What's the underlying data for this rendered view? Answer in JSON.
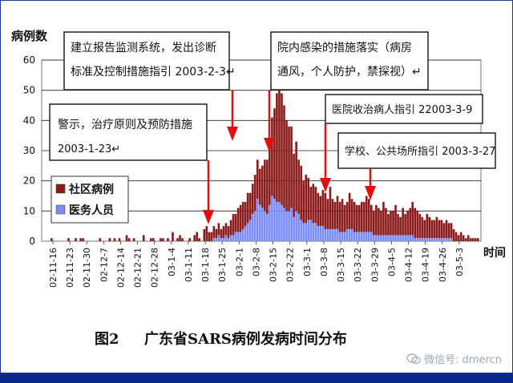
{
  "chart_data": {
    "type": "bar",
    "stacked": true,
    "ylabel": "病例数",
    "xlabel": "时间",
    "ylim": [
      0,
      60
    ],
    "yticks": [
      0,
      10,
      20,
      30,
      40,
      50,
      60
    ],
    "xtick_labels": [
      "02-11-16",
      "02-11-23",
      "02-11-30",
      "02-12-7",
      "02-12-14",
      "02-12-21",
      "02-12-28",
      "03-1-4",
      "03-1-11",
      "03-1-18",
      "03-1-25",
      "03-2-1",
      "03-2-8",
      "03-2-15",
      "03-2-22",
      "03-3-1",
      "03-3-8",
      "03-3-15",
      "03-3-22",
      "03-3-29",
      "03-4-5",
      "03-4-12",
      "03-4-19",
      "03-4-26",
      "03-5-3"
    ],
    "grid": true,
    "legend_position": "lower-left",
    "series": [
      {
        "name": "社区病例",
        "color": "#8b1a1a",
        "values": [
          0,
          0,
          0,
          1,
          0,
          0,
          0,
          0,
          0,
          0,
          1,
          0,
          0,
          1,
          0,
          1,
          1,
          0,
          0,
          0,
          0,
          0,
          0,
          1,
          0,
          0,
          0,
          1,
          0,
          1,
          0,
          1,
          0,
          0,
          2,
          1,
          0,
          1,
          0,
          0,
          0,
          2,
          0,
          0,
          1,
          1,
          0,
          0,
          1,
          1,
          0,
          1,
          0,
          3,
          0,
          1,
          2,
          1,
          0,
          0,
          1,
          0,
          2,
          3,
          1,
          0,
          4,
          5,
          3,
          3,
          4,
          3,
          4,
          3,
          4,
          4,
          4,
          5,
          7,
          6,
          8,
          9,
          9,
          8,
          10,
          9,
          10,
          12,
          13,
          12,
          14,
          17,
          18,
          22,
          26,
          30,
          36,
          41,
          37,
          34,
          30,
          28,
          27,
          21,
          23,
          18,
          18,
          14,
          16,
          14,
          11,
          13,
          12,
          11,
          10,
          12,
          12,
          10,
          14,
          10,
          9,
          11,
          10,
          11,
          9,
          9,
          12,
          10,
          10,
          9,
          9,
          10,
          10,
          12,
          11,
          9,
          8,
          10,
          9,
          8,
          11,
          9,
          7,
          8,
          8,
          10,
          7,
          6,
          9,
          7,
          8,
          9,
          11,
          10,
          9,
          8,
          7,
          6,
          8,
          7,
          6,
          6,
          7,
          6,
          6,
          5,
          6,
          5,
          5,
          4,
          3,
          2,
          3,
          2,
          1,
          2,
          1,
          1,
          1,
          1
        ]
      },
      {
        "name": "医务人员",
        "color": "#7b8cff",
        "values": [
          0,
          0,
          0,
          0,
          0,
          0,
          0,
          0,
          0,
          0,
          0,
          0,
          0,
          0,
          0,
          0,
          0,
          0,
          0,
          0,
          0,
          0,
          0,
          0,
          0,
          0,
          0,
          0,
          0,
          0,
          0,
          0,
          0,
          0,
          0,
          0,
          0,
          0,
          0,
          0,
          0,
          0,
          0,
          0,
          0,
          0,
          0,
          0,
          0,
          0,
          0,
          0,
          0,
          0,
          0,
          0,
          0,
          0,
          0,
          0,
          0,
          0,
          0,
          0,
          0,
          0,
          0,
          0,
          0,
          0,
          1,
          1,
          2,
          1,
          1,
          2,
          1,
          2,
          2,
          3,
          3,
          3,
          4,
          5,
          6,
          7,
          9,
          10,
          14,
          12,
          11,
          10,
          9,
          12,
          15,
          14,
          13,
          13,
          12,
          11,
          10,
          10,
          11,
          8,
          10,
          9,
          7,
          6,
          6,
          7,
          7,
          6,
          6,
          5,
          5,
          5,
          4,
          4,
          4,
          4,
          4,
          4,
          3,
          3,
          3,
          4,
          4,
          4,
          3,
          3,
          3,
          3,
          3,
          3,
          3,
          3,
          2,
          2,
          2,
          2,
          2,
          2,
          2,
          2,
          2,
          2,
          2,
          2,
          2,
          2,
          2,
          2,
          2,
          1,
          1,
          1,
          1,
          1,
          1,
          1,
          1,
          1,
          1,
          1,
          1,
          1,
          1,
          1,
          1,
          0,
          0,
          0,
          0,
          0,
          0,
          0,
          0,
          0,
          0,
          0
        ]
      }
    ],
    "annotations": [
      {
        "text": "建立报告监测系统，发出诊断标准及控制措施指引 2003-2-3",
        "date": "03-2-3"
      },
      {
        "text": "院内感染的措施落实（病房通风，个人防护，禁探视）",
        "date": "03-2-13"
      },
      {
        "text": "警示，治疗原则及预防措施 2003-1-23",
        "date": "03-1-23"
      },
      {
        "text": "医院收治病人指引 22003-3-9",
        "date": "03-3-9"
      },
      {
        "text": "学校、公共场所指引 2003-3-27",
        "date": "03-3-27"
      }
    ]
  },
  "labels": {
    "ylabel": "病例数",
    "xlabel": "时间",
    "legend_community": "社区病例",
    "legend_medical": "医务人员",
    "caption_figure": "图2",
    "caption_title": "广东省SARS病例发病时间分布",
    "watermark": "微信号: dmercn",
    "annotation_1a": "建立报告监测系统，发出诊断",
    "annotation_1b": "标准及控制措施指引 2003-2-3↵",
    "annotation_2a": "院内感染的措施落实（病房",
    "annotation_2b": "通风，个人防护，禁探视）↵",
    "annotation_3a": "警示，治疗原则及预防措施",
    "annotation_3b": "2003-1-23↵",
    "annotation_4": "医院收治病人指引 22003-3-9",
    "annotation_5": "学校、公共场所指引 2003-3-27"
  },
  "colors": {
    "frame_outer": "#0a2a8a",
    "plot_background": "#ffffff",
    "arrow": "#e01010",
    "bar_community": "#8b1a1a",
    "bar_medical": "#7b8cff"
  }
}
